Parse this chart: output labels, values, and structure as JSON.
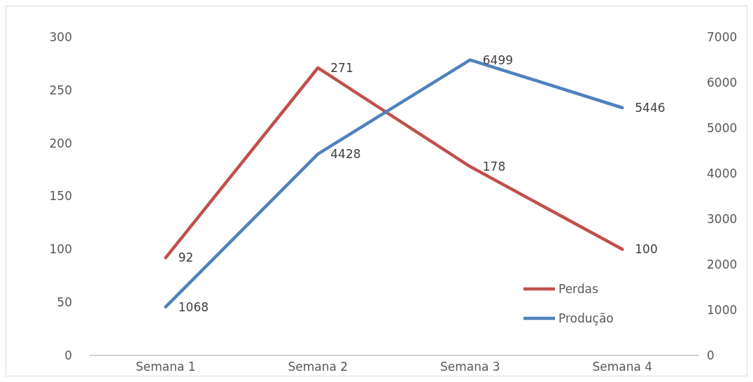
{
  "chart_data": {
    "type": "line",
    "categories": [
      "Semana 1",
      "Semana 2",
      "Semana 3",
      "Semana 4"
    ],
    "series": [
      {
        "name": "Perdas",
        "color": "#c0504d",
        "values": [
          92,
          271,
          178,
          100
        ]
      },
      {
        "name": "Produção",
        "color": "#4f81bd",
        "values": [
          1068,
          4428,
          6499,
          5446
        ],
        "axis": "y2"
      }
    ],
    "ylim": [
      0,
      300
    ],
    "yticks": [
      0,
      50,
      100,
      150,
      200,
      250,
      300
    ],
    "y2lim": [
      0,
      7000
    ],
    "y2ticks": [
      0,
      1000,
      2000,
      3000,
      4000,
      5000,
      6000,
      7000
    ],
    "data_labels": true,
    "legend": "bottom right",
    "grid": false,
    "marker": "none",
    "line_style": "solid"
  }
}
